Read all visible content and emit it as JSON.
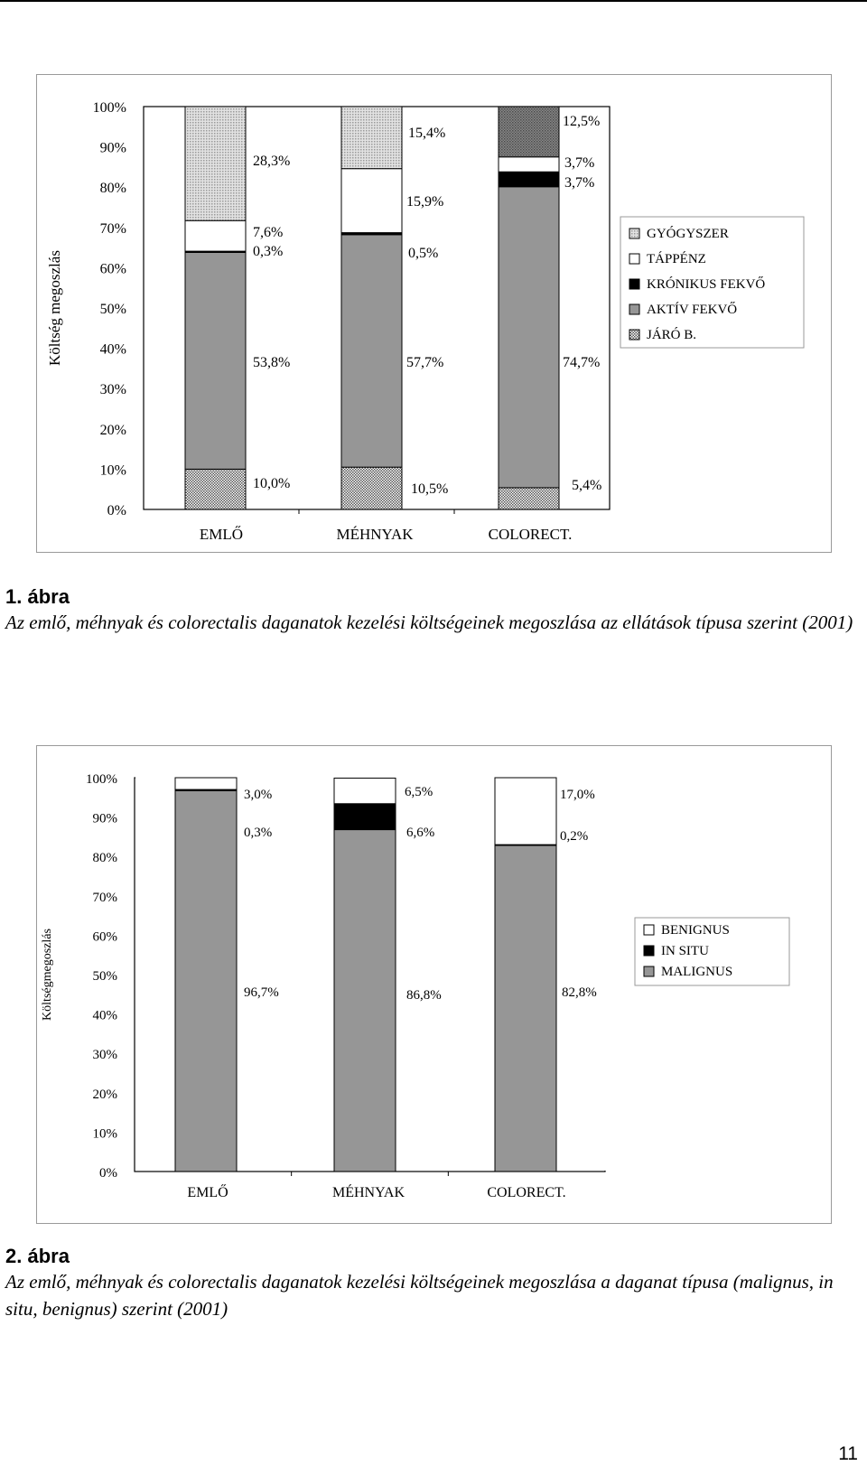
{
  "chart_data": [
    {
      "type": "bar",
      "stacked": true,
      "percent_stacked": true,
      "ylabel": "Költség megoszlás",
      "ylim": [
        0,
        100
      ],
      "y_ticks": [
        "0%",
        "10%",
        "20%",
        "30%",
        "40%",
        "50%",
        "60%",
        "70%",
        "80%",
        "90%",
        "100%"
      ],
      "categories": [
        "EMLŐ",
        "MÉHNYAK",
        "COLORECT."
      ],
      "legend_position": "right",
      "series": [
        {
          "name": "JÁRÓ B.",
          "values": [
            10.0,
            10.5,
            5.4
          ],
          "labels": [
            "10,0%",
            "10,5%",
            "5,4%"
          ]
        },
        {
          "name": "AKTÍV FEKVŐ",
          "values": [
            53.8,
            57.7,
            74.7
          ],
          "labels": [
            "53,8%",
            "57,7%",
            "74,7%"
          ]
        },
        {
          "name": "KRÓNIKUS FEKVŐ",
          "values": [
            0.3,
            0.5,
            3.7
          ],
          "labels": [
            "0,3%",
            "0,5%",
            "3,7%"
          ]
        },
        {
          "name": "TÁPPÉNZ",
          "values": [
            7.6,
            15.9,
            3.7
          ],
          "labels": [
            "7,6%",
            "15,9%",
            "3,7%"
          ]
        },
        {
          "name": "GYÓGYSZER",
          "values": [
            28.3,
            15.4,
            12.5
          ],
          "labels": [
            "28,3%",
            "15,4%",
            "12,5%"
          ]
        }
      ],
      "legend_order": [
        "GYÓGYSZER",
        "TÁPPÉNZ",
        "KRÓNIKUS FEKVŐ",
        "AKTÍV FEKVŐ",
        "JÁRÓ B."
      ],
      "colors": {
        "JÁRÓ B.": "#c8c8c8",
        "AKTÍV FEKVŐ": "#969696",
        "KRÓNIKUS FEKVŐ": "#000000",
        "TÁPPÉNZ": "#ffffff",
        "GYÓGYSZER": "#bdbdbd"
      },
      "patterns": {
        "JÁRÓ B.": "checker",
        "GYÓGYSZER": "dots-light",
        "COLORECT.-GYÓGYSZER": "dots-dark"
      }
    },
    {
      "type": "bar",
      "stacked": true,
      "percent_stacked": true,
      "ylabel": "Költségmegoszlás",
      "ylim": [
        0,
        100
      ],
      "y_ticks": [
        "0%",
        "10%",
        "20%",
        "30%",
        "40%",
        "50%",
        "60%",
        "70%",
        "80%",
        "90%",
        "100%"
      ],
      "categories": [
        "EMLŐ",
        "MÉHNYAK",
        "COLORECT."
      ],
      "legend_position": "right",
      "series": [
        {
          "name": "MALIGNUS",
          "values": [
            96.7,
            86.8,
            82.8
          ],
          "labels": [
            "96,7%",
            "86,8%",
            "82,8%"
          ]
        },
        {
          "name": "IN SITU",
          "values": [
            0.3,
            6.6,
            0.2
          ],
          "labels": [
            "0,3%",
            "6,6%",
            "0,2%"
          ]
        },
        {
          "name": "BENIGNUS",
          "values": [
            3.0,
            6.5,
            17.0
          ],
          "labels": [
            "3,0%",
            "6,5%",
            "17,0%"
          ]
        }
      ],
      "legend_order": [
        "BENIGNUS",
        "IN SITU",
        "MALIGNUS"
      ],
      "colors": {
        "MALIGNUS": "#969696",
        "IN SITU": "#000000",
        "BENIGNUS": "#ffffff"
      }
    }
  ],
  "captions": [
    {
      "number": "1. ábra",
      "text": "Az emlő, méhnyak és colorectalis daganatok kezelési költségeinek megoszlása az ellátások típusa szerint (2001)"
    },
    {
      "number": "2. ábra",
      "text": "Az emlő, méhnyak és colorectalis daganatok kezelési költségeinek megoszlása a daganat típusa (malignus, in situ, benignus) szerint (2001)"
    }
  ],
  "page_number": "11"
}
